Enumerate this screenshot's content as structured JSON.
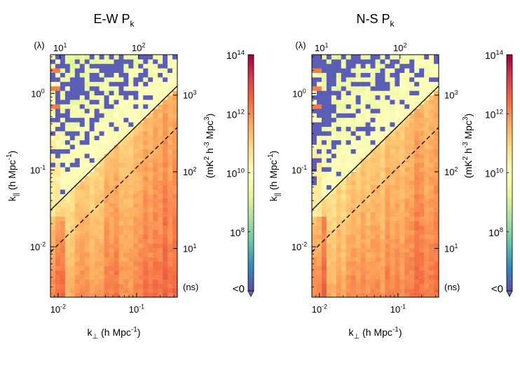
{
  "chart_data": [
    {
      "type": "heatmap",
      "title": "E-W P",
      "title_sub": "k",
      "xlabel_main": "k",
      "xlabel_sub": "⊥",
      "xlabel_unit": " (h Mpc",
      "xlabel_sup": "-1",
      "xlabel_close": ")",
      "ylabel_main": "k",
      "ylabel_sub": "||",
      "ylabel_unit": " (h Mpc",
      "ylabel_sup": "-1",
      "ylabel_close": ")",
      "x_scale": "log",
      "y_scale": "log",
      "xlim": [
        0.008,
        0.33
      ],
      "ylim": [
        0.0022,
        3.2
      ],
      "x_ticks": [
        {
          "value": 0.01,
          "base": "10",
          "exp": "-2"
        },
        {
          "value": 0.1,
          "base": "10",
          "exp": "-1"
        }
      ],
      "y_ticks": [
        {
          "value": 0.01,
          "base": "10",
          "exp": "-2"
        },
        {
          "value": 0.1,
          "base": "10",
          "exp": "-1"
        },
        {
          "value": 1,
          "base": "10",
          "exp": "0"
        }
      ],
      "top_axis_label": "(λ)",
      "top_ticks": [
        {
          "value": 10,
          "base": "10",
          "exp": "1",
          "pos": 0.0106
        },
        {
          "value": 100,
          "base": "10",
          "exp": "2",
          "pos": 0.106
        }
      ],
      "right_axis_label": "(ns)",
      "right_ticks": [
        {
          "value": 10,
          "base": "10",
          "exp": "1",
          "pos": 0.0095
        },
        {
          "value": 100,
          "base": "10",
          "exp": "2",
          "pos": 0.095
        },
        {
          "value": 1000,
          "base": "10",
          "exp": "3",
          "pos": 0.95
        }
      ],
      "horizon_line": {
        "style": "solid",
        "points": [
          [
            0.008,
            0.03
          ],
          [
            0.33,
            1.25
          ]
        ]
      },
      "beam_line": {
        "style": "dashed",
        "points": [
          [
            0.008,
            0.0085
          ],
          [
            0.33,
            0.36
          ]
        ]
      },
      "colorbar": {
        "label": "(mK",
        "label_sup1": "2",
        "label_mid": " h",
        "label_sup2": "-3",
        "label_end": " Mpc",
        "label_sup3": "3",
        "label_close": ")",
        "scale": "log",
        "range": [
          1000000.0,
          100000000000000.0
        ],
        "ticks": [
          {
            "value": 100000000.0,
            "base": "10",
            "exp": "8"
          },
          {
            "value": 10000000000.0,
            "base": "10",
            "exp": "10"
          },
          {
            "value": 1000000000000.0,
            "base": "10",
            "exp": "12"
          },
          {
            "value": 100000000000000.0,
            "base": "10",
            "exp": "14"
          }
        ],
        "under_label": "<0",
        "under_color": "#4b7ab8",
        "stops": [
          "#5e4fa2",
          "#3288bd",
          "#66c2a5",
          "#abdda4",
          "#e6f598",
          "#ffffbf",
          "#fee08b",
          "#fdae61",
          "#f46d43",
          "#d53e4f",
          "#9e0142"
        ]
      },
      "negative_color": "#5a5fb5",
      "noise_color": "#d7eea2"
    },
    {
      "type": "heatmap",
      "title": "N-S P",
      "title_sub": "k",
      "xlabel_main": "k",
      "xlabel_sub": "⊥",
      "xlabel_unit": " (h Mpc",
      "xlabel_sup": "-1",
      "xlabel_close": ")",
      "ylabel_main": "k",
      "ylabel_sub": "||",
      "ylabel_unit": " (h Mpc",
      "ylabel_sup": "-1",
      "ylabel_close": ")",
      "x_scale": "log",
      "y_scale": "log",
      "xlim": [
        0.008,
        0.33
      ],
      "ylim": [
        0.0022,
        3.2
      ],
      "x_ticks": [
        {
          "value": 0.01,
          "base": "10",
          "exp": "-2"
        },
        {
          "value": 0.1,
          "base": "10",
          "exp": "-1"
        }
      ],
      "y_ticks": [
        {
          "value": 0.01,
          "base": "10",
          "exp": "-2"
        },
        {
          "value": 0.1,
          "base": "10",
          "exp": "-1"
        },
        {
          "value": 1,
          "base": "10",
          "exp": "0"
        }
      ],
      "top_axis_label": "(λ)",
      "top_ticks": [
        {
          "value": 10,
          "base": "10",
          "exp": "1",
          "pos": 0.0106
        },
        {
          "value": 100,
          "base": "10",
          "exp": "2",
          "pos": 0.106
        }
      ],
      "right_axis_label": "(ns)",
      "right_ticks": [
        {
          "value": 10,
          "base": "10",
          "exp": "1",
          "pos": 0.0095
        },
        {
          "value": 100,
          "base": "10",
          "exp": "2",
          "pos": 0.095
        },
        {
          "value": 1000,
          "base": "10",
          "exp": "3",
          "pos": 0.95
        }
      ],
      "horizon_line": {
        "style": "solid",
        "points": [
          [
            0.008,
            0.03
          ],
          [
            0.33,
            1.25
          ]
        ]
      },
      "beam_line": {
        "style": "dashed",
        "points": [
          [
            0.008,
            0.0085
          ],
          [
            0.33,
            0.36
          ]
        ]
      },
      "colorbar": {
        "label": "(mK",
        "label_sup1": "2",
        "label_mid": " h",
        "label_sup2": "-3",
        "label_end": " Mpc",
        "label_sup3": "3",
        "label_close": ")",
        "scale": "log",
        "range": [
          1000000.0,
          100000000000000.0
        ],
        "ticks": [
          {
            "value": 100000000.0,
            "base": "10",
            "exp": "8"
          },
          {
            "value": 10000000000.0,
            "base": "10",
            "exp": "10"
          },
          {
            "value": 1000000000000.0,
            "base": "10",
            "exp": "12"
          },
          {
            "value": 100000000000000.0,
            "base": "10",
            "exp": "14"
          }
        ],
        "under_label": "<0",
        "under_color": "#4b7ab8",
        "stops": [
          "#5e4fa2",
          "#3288bd",
          "#66c2a5",
          "#abdda4",
          "#e6f598",
          "#ffffbf",
          "#fee08b",
          "#fdae61",
          "#f46d43",
          "#d53e4f",
          "#9e0142"
        ]
      },
      "negative_color": "#5a5fb5",
      "noise_color": "#d7eea2"
    }
  ]
}
